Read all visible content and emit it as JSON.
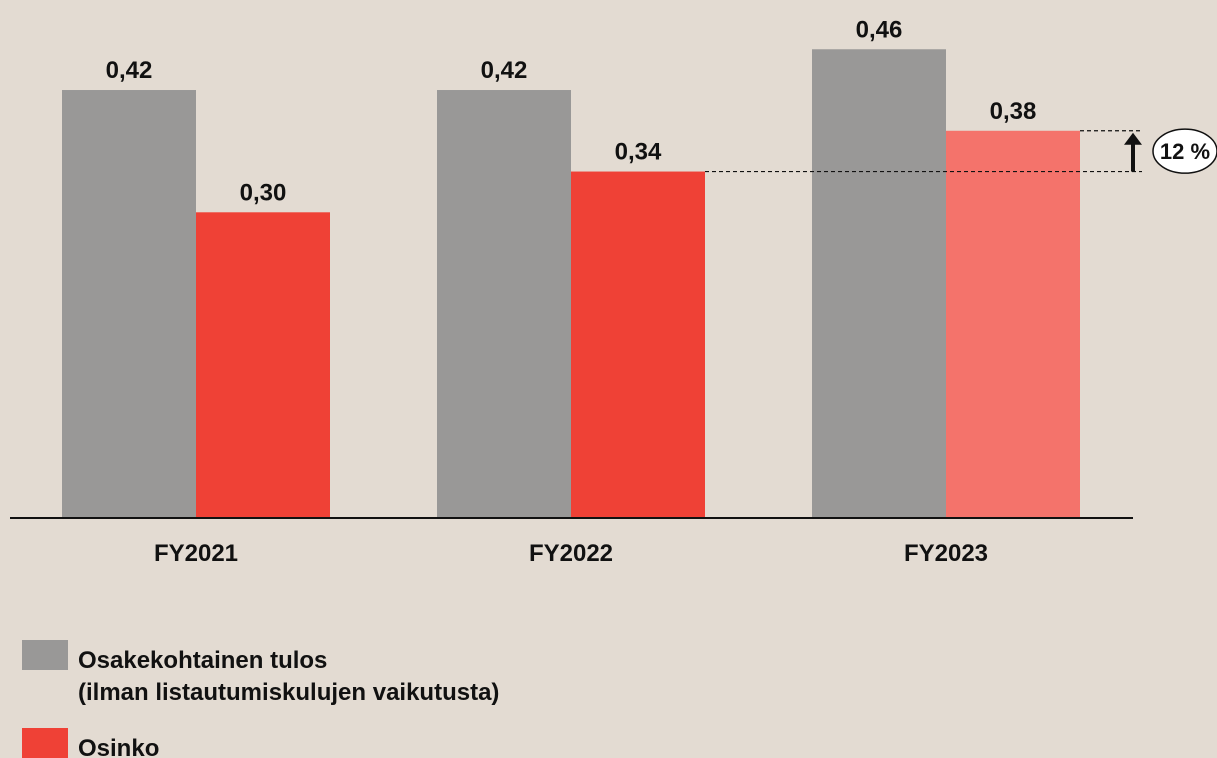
{
  "chart_data": {
    "type": "bar",
    "categories": [
      "FY2021",
      "FY2022",
      "FY2023"
    ],
    "series": [
      {
        "name": "Osakekohtainen tulos\n(ilman listautumiskulujen vaikutusta)",
        "color": "#999897",
        "values": [
          0.42,
          0.42,
          0.46
        ],
        "value_labels": [
          "0,42",
          "0,42",
          "0,46"
        ]
      },
      {
        "name": "Osinko",
        "color": "#ef4136",
        "colors": [
          "#ef4136",
          "#ef4136",
          "#f4736b"
        ],
        "values": [
          0.3,
          0.34,
          0.38
        ],
        "value_labels": [
          "0,30",
          "0,34",
          "0,38"
        ]
      }
    ],
    "ylim": [
      0,
      0.5
    ],
    "annotation": "12 %"
  }
}
